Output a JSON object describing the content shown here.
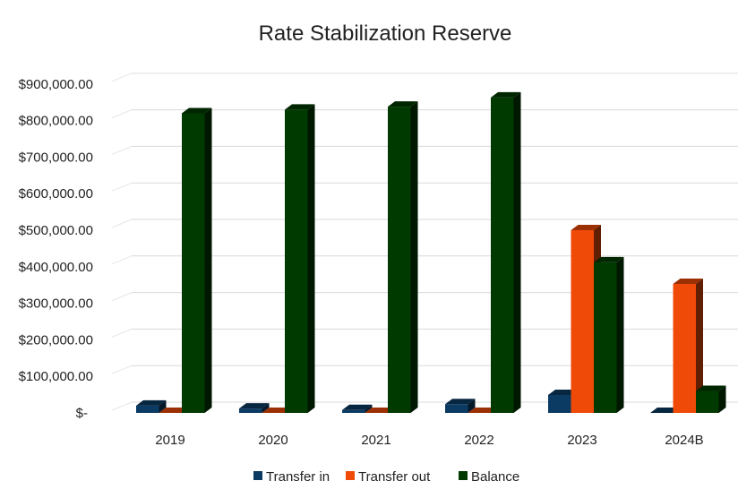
{
  "chart_data": {
    "type": "bar",
    "title": "Rate Stabilization Reserve",
    "categories": [
      "2019",
      "2020",
      "2021",
      "2022",
      "2023",
      "2024B"
    ],
    "series": [
      {
        "name": "Transfer in",
        "color": "#0b3b63",
        "values": [
          20000,
          12000,
          8000,
          24000,
          49000,
          0
        ]
      },
      {
        "name": "Transfer out",
        "color": "#f04a08",
        "values": [
          0,
          0,
          0,
          0,
          500000,
          353000
        ]
      },
      {
        "name": "Balance",
        "color": "#003a00",
        "values": [
          820000,
          830000,
          838000,
          863000,
          412000,
          60000
        ]
      }
    ],
    "yticks": [
      "$-",
      "$100,000.00",
      "$200,000.00",
      "$300,000.00",
      "$400,000.00",
      "$500,000.00",
      "$600,000.00",
      "$700,000.00",
      "$800,000.00",
      "$900,000.00"
    ],
    "ylim": [
      0,
      900000
    ],
    "grid": true,
    "legend": "bottom",
    "style": "3d-column"
  }
}
